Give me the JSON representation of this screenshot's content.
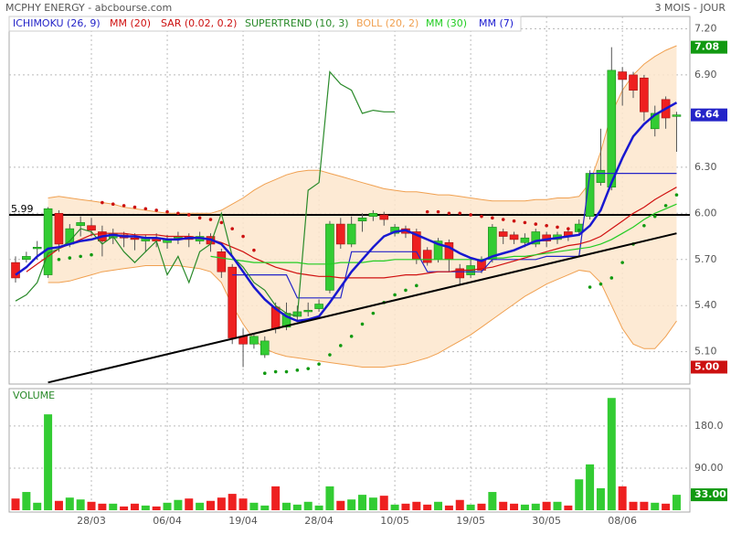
{
  "chart_data": [
    {
      "type": "candlestick",
      "title": "MCPHY ENERGY - abcbourse.com",
      "subtitle": "3 MOIS - JOUR",
      "categories": [
        null,
        null,
        null,
        null,
        null,
        null,
        null,
        "28/03",
        null,
        null,
        null,
        null,
        null,
        null,
        "06/04",
        null,
        null,
        null,
        null,
        null,
        null,
        "19/04",
        null,
        null,
        null,
        null,
        null,
        null,
        "28/04",
        null,
        null,
        null,
        null,
        null,
        null,
        "10/05",
        null,
        null,
        null,
        null,
        null,
        null,
        "19/05",
        null,
        null,
        null,
        null,
        null,
        null,
        "30/05",
        null,
        null,
        null,
        null,
        null,
        null,
        "08/06",
        null,
        null,
        null,
        null,
        null
      ],
      "open": [
        5.68,
        5.7,
        5.77,
        5.6,
        6.0,
        5.8,
        5.92,
        5.92,
        5.88,
        5.84,
        5.86,
        5.84,
        5.82,
        5.84,
        5.81,
        5.84,
        5.85,
        5.82,
        5.85,
        5.75,
        5.65,
        5.2,
        5.15,
        5.08,
        5.39,
        5.26,
        5.33,
        5.36,
        5.38,
        5.5,
        5.93,
        5.8,
        5.95,
        5.98,
        5.99,
        5.87,
        5.9,
        5.88,
        5.76,
        5.7,
        5.81,
        5.64,
        5.6,
        5.7,
        5.7,
        5.88,
        5.86,
        5.81,
        5.8,
        5.86,
        5.83,
        5.88,
        5.88,
        5.98,
        6.2,
        6.17,
        6.92,
        6.9,
        6.88,
        6.55,
        6.74,
        6.63
      ],
      "high": [
        5.72,
        5.75,
        5.82,
        6.04,
        6.02,
        5.93,
        5.98,
        5.97,
        5.92,
        5.9,
        5.88,
        5.87,
        5.86,
        5.87,
        5.86,
        5.88,
        5.87,
        5.88,
        5.87,
        5.77,
        5.67,
        5.25,
        5.22,
        5.2,
        5.42,
        5.42,
        5.4,
        5.42,
        5.44,
        5.95,
        5.97,
        5.98,
        6.0,
        6.02,
        6.01,
        5.93,
        5.92,
        5.9,
        5.78,
        5.84,
        5.83,
        5.67,
        5.7,
        5.72,
        5.93,
        5.9,
        5.88,
        5.87,
        5.9,
        5.88,
        5.88,
        5.9,
        5.96,
        6.28,
        6.55,
        7.08,
        6.95,
        6.92,
        6.9,
        6.7,
        6.76,
        6.66
      ],
      "low": [
        5.55,
        5.68,
        5.7,
        5.58,
        5.75,
        5.78,
        5.85,
        5.85,
        5.72,
        5.8,
        5.78,
        5.76,
        5.75,
        5.78,
        5.77,
        5.8,
        5.78,
        5.8,
        5.75,
        5.58,
        5.15,
        5.0,
        5.12,
        5.06,
        5.22,
        5.24,
        5.3,
        5.33,
        5.36,
        5.48,
        5.77,
        5.78,
        5.88,
        5.95,
        5.92,
        5.85,
        5.84,
        5.67,
        5.66,
        5.68,
        5.62,
        5.53,
        5.58,
        5.61,
        5.68,
        5.8,
        5.8,
        5.78,
        5.78,
        5.78,
        5.8,
        5.82,
        5.86,
        5.96,
        6.18,
        6.15,
        6.7,
        6.75,
        6.6,
        6.5,
        6.55,
        6.4
      ],
      "close": [
        5.58,
        5.72,
        5.78,
        6.03,
        5.8,
        5.9,
        5.94,
        5.89,
        5.82,
        5.87,
        5.84,
        5.83,
        5.84,
        5.82,
        5.83,
        5.85,
        5.83,
        5.85,
        5.8,
        5.62,
        5.19,
        5.15,
        5.2,
        5.17,
        5.25,
        5.35,
        5.36,
        5.37,
        5.41,
        5.93,
        5.8,
        5.93,
        5.97,
        6.0,
        5.96,
        5.91,
        5.87,
        5.7,
        5.68,
        5.82,
        5.7,
        5.58,
        5.66,
        5.63,
        5.91,
        5.85,
        5.83,
        5.84,
        5.88,
        5.82,
        5.86,
        5.85,
        5.93,
        6.26,
        6.28,
        6.93,
        6.87,
        6.8,
        6.66,
        6.65,
        6.62,
        6.64
      ],
      "up_color": "#33cc33",
      "down_color": "#ee2020",
      "ylim": [
        4.89,
        7.28
      ],
      "yticks": [
        {
          "value": 5.1,
          "label": "5.10"
        },
        {
          "value": 5.4,
          "label": "5.40"
        },
        {
          "value": 5.7,
          "label": "5.70"
        },
        {
          "value": 6.0,
          "label": "6.00"
        },
        {
          "value": 6.3,
          "label": "6.30"
        },
        {
          "value": 6.9,
          "label": "6.90"
        },
        {
          "value": 7.2,
          "label": "7.20"
        }
      ],
      "grid": true,
      "series": [
        {
          "name": "ICHIMOKU (26, 9)",
          "kind": "line",
          "color": "#2424c8",
          "values": [
            null,
            null,
            null,
            null,
            null,
            null,
            null,
            null,
            null,
            null,
            null,
            null,
            null,
            null,
            null,
            null,
            null,
            null,
            null,
            null,
            5.6,
            5.6,
            5.6,
            5.6,
            5.6,
            5.6,
            5.45,
            5.45,
            5.45,
            5.45,
            5.45,
            5.75,
            5.75,
            5.75,
            5.75,
            5.75,
            5.75,
            5.75,
            5.62,
            5.62,
            5.62,
            5.62,
            5.62,
            5.62,
            5.7,
            5.7,
            5.7,
            5.7,
            5.7,
            5.72,
            5.72,
            5.72,
            5.72,
            6.26,
            6.26,
            6.26,
            6.26,
            6.26,
            6.26,
            6.26,
            6.26,
            6.26
          ]
        },
        {
          "name": "MM (20)",
          "kind": "line",
          "color": "#d01010",
          "values": [
            null,
            5.62,
            5.67,
            5.72,
            5.77,
            5.8,
            5.83,
            5.86,
            5.87,
            5.87,
            5.87,
            5.86,
            5.86,
            5.86,
            5.85,
            5.85,
            5.85,
            5.84,
            5.83,
            5.81,
            5.78,
            5.75,
            5.71,
            5.68,
            5.65,
            5.63,
            5.61,
            5.6,
            5.59,
            5.59,
            5.58,
            5.58,
            5.58,
            5.58,
            5.58,
            5.59,
            5.6,
            5.6,
            5.61,
            5.62,
            5.62,
            5.63,
            5.63,
            5.64,
            5.65,
            5.67,
            5.69,
            5.71,
            5.73,
            5.75,
            5.77,
            5.79,
            5.8,
            5.82,
            5.85,
            5.9,
            5.95,
            6.0,
            6.04,
            6.09,
            6.13,
            6.17
          ]
        },
        {
          "name": "SAR (0.02, 0.2)",
          "kind": "dots",
          "color": "#cc1010",
          "color_below": "#119911",
          "values": [
            null,
            null,
            null,
            null,
            5.7,
            5.71,
            5.72,
            5.73,
            6.07,
            6.06,
            6.05,
            6.04,
            6.03,
            6.02,
            6.01,
            6.0,
            5.99,
            5.97,
            5.96,
            5.94,
            5.9,
            5.85,
            5.76,
            4.96,
            4.97,
            4.97,
            4.98,
            4.99,
            5.02,
            5.08,
            5.14,
            5.2,
            5.28,
            5.35,
            5.42,
            5.47,
            5.5,
            5.53,
            6.01,
            6.01,
            6.0,
            6.0,
            5.99,
            5.98,
            5.97,
            5.96,
            5.95,
            5.94,
            5.93,
            5.92,
            5.91,
            5.9,
            5.89,
            5.52,
            5.54,
            5.58,
            5.68,
            5.8,
            5.92,
            5.98,
            6.05,
            6.12
          ]
        },
        {
          "name": "SUPERTREND (10, 3)",
          "kind": "line",
          "color": "#2a8a2a",
          "values": [
            5.43,
            5.47,
            5.55,
            5.74,
            5.77,
            5.82,
            5.9,
            5.88,
            5.8,
            5.85,
            5.75,
            5.68,
            5.75,
            5.82,
            5.6,
            5.72,
            5.55,
            5.75,
            5.8,
            6.0,
            5.72,
            5.65,
            5.55,
            5.5,
            5.4,
            5.35,
            5.33,
            6.15,
            6.2,
            6.92,
            6.84,
            6.8,
            6.65,
            6.67,
            6.66,
            6.66,
            null,
            null,
            null,
            null,
            null,
            null,
            null,
            null,
            null,
            null,
            null,
            null,
            null,
            null,
            null,
            null,
            null,
            null,
            null,
            null,
            null,
            null,
            null,
            null,
            null,
            null
          ]
        },
        {
          "name": "BOLL (20, 2)",
          "kind": "band",
          "color": "#f0a050",
          "fill": "#fde6cc",
          "values": [
            null,
            null,
            null,
            6.1,
            6.11,
            6.1,
            6.09,
            6.08,
            6.07,
            6.06,
            6.04,
            6.03,
            6.02,
            6.01,
            6.0,
            6.0,
            6.0,
            6.0,
            6.0,
            6.02,
            6.06,
            6.1,
            6.15,
            6.19,
            6.22,
            6.25,
            6.27,
            6.28,
            6.28,
            6.26,
            6.24,
            6.22,
            6.2,
            6.18,
            6.16,
            6.15,
            6.14,
            6.14,
            6.13,
            6.12,
            6.12,
            6.11,
            6.1,
            6.09,
            6.08,
            6.08,
            6.08,
            6.08,
            6.09,
            6.09,
            6.1,
            6.1,
            6.11,
            6.2,
            6.4,
            6.65,
            6.8,
            6.9,
            6.97,
            7.02,
            7.06,
            7.09
          ],
          "lower": [
            null,
            null,
            null,
            5.55,
            5.55,
            5.56,
            5.58,
            5.6,
            5.62,
            5.63,
            5.64,
            5.65,
            5.66,
            5.66,
            5.66,
            5.66,
            5.65,
            5.64,
            5.62,
            5.55,
            5.4,
            5.28,
            5.18,
            5.12,
            5.09,
            5.07,
            5.06,
            5.05,
            5.04,
            5.03,
            5.02,
            5.01,
            5.0,
            5.0,
            5.0,
            5.01,
            5.02,
            5.04,
            5.06,
            5.09,
            5.13,
            5.17,
            5.21,
            5.26,
            5.31,
            5.36,
            5.41,
            5.46,
            5.5,
            5.54,
            5.57,
            5.6,
            5.63,
            5.62,
            5.55,
            5.4,
            5.25,
            5.15,
            5.12,
            5.12,
            5.2,
            5.3
          ]
        },
        {
          "name": "MM (30)",
          "kind": "line",
          "color": "#22cc22",
          "values": [
            null,
            null,
            null,
            null,
            null,
            null,
            null,
            null,
            null,
            null,
            null,
            null,
            null,
            null,
            null,
            null,
            null,
            null,
            5.72,
            5.71,
            5.7,
            5.69,
            5.68,
            5.68,
            5.68,
            5.68,
            5.68,
            5.67,
            5.67,
            5.67,
            5.68,
            5.68,
            5.68,
            5.69,
            5.69,
            5.7,
            5.7,
            5.7,
            5.7,
            5.7,
            5.7,
            5.7,
            5.7,
            5.7,
            5.71,
            5.71,
            5.72,
            5.72,
            5.73,
            5.74,
            5.75,
            5.76,
            5.77,
            5.78,
            5.8,
            5.83,
            5.87,
            5.91,
            5.96,
            6.0,
            6.03,
            6.06
          ]
        },
        {
          "name": "MM (7)",
          "kind": "line",
          "color": "#1818d0",
          "width": 2.5,
          "values": [
            5.6,
            5.65,
            5.72,
            5.77,
            5.78,
            5.8,
            5.82,
            5.83,
            5.85,
            5.86,
            5.85,
            5.85,
            5.84,
            5.84,
            5.83,
            5.83,
            5.84,
            5.84,
            5.83,
            5.8,
            5.72,
            5.62,
            5.52,
            5.44,
            5.38,
            5.33,
            5.3,
            5.31,
            5.33,
            5.42,
            5.52,
            5.62,
            5.7,
            5.78,
            5.85,
            5.88,
            5.89,
            5.86,
            5.83,
            5.8,
            5.78,
            5.74,
            5.71,
            5.69,
            5.72,
            5.74,
            5.76,
            5.79,
            5.82,
            5.83,
            5.84,
            5.85,
            5.86,
            5.92,
            6.02,
            6.2,
            6.36,
            6.5,
            6.58,
            6.64,
            6.68,
            6.72
          ]
        }
      ],
      "hline": {
        "value": 5.99,
        "label": "5.99"
      },
      "trendline": {
        "from": [
          3,
          4.9
        ],
        "to": [
          61,
          5.87
        ]
      },
      "price_labels": [
        {
          "value": 7.08,
          "label": "7.08",
          "color": "#119911"
        },
        {
          "value": 6.64,
          "label": "6.64",
          "color": "#2424c8"
        },
        {
          "value": 5.0,
          "label": "5.00",
          "color": "#cc1010"
        }
      ]
    },
    {
      "type": "bar",
      "title": "VOLUME",
      "values": [
        25,
        39,
        16,
        205,
        20,
        27,
        23,
        18,
        14,
        14,
        8,
        14,
        10,
        8,
        16,
        22,
        25,
        16,
        20,
        27,
        35,
        25,
        16,
        10,
        51,
        16,
        12,
        18,
        10,
        51,
        20,
        23,
        33,
        27,
        31,
        12,
        14,
        18,
        12,
        18,
        10,
        22,
        12,
        14,
        39,
        18,
        14,
        12,
        14,
        18,
        18,
        10,
        66,
        98,
        47,
        240,
        51,
        18,
        18,
        16,
        14,
        33
      ],
      "ylim": [
        0,
        260
      ],
      "yticks": [
        {
          "value": 90,
          "label": "90.00"
        },
        {
          "value": 180,
          "label": "180.0"
        }
      ],
      "grid": true,
      "last_label": {
        "value": 33,
        "label": "33.00",
        "color": "#119911"
      }
    }
  ]
}
